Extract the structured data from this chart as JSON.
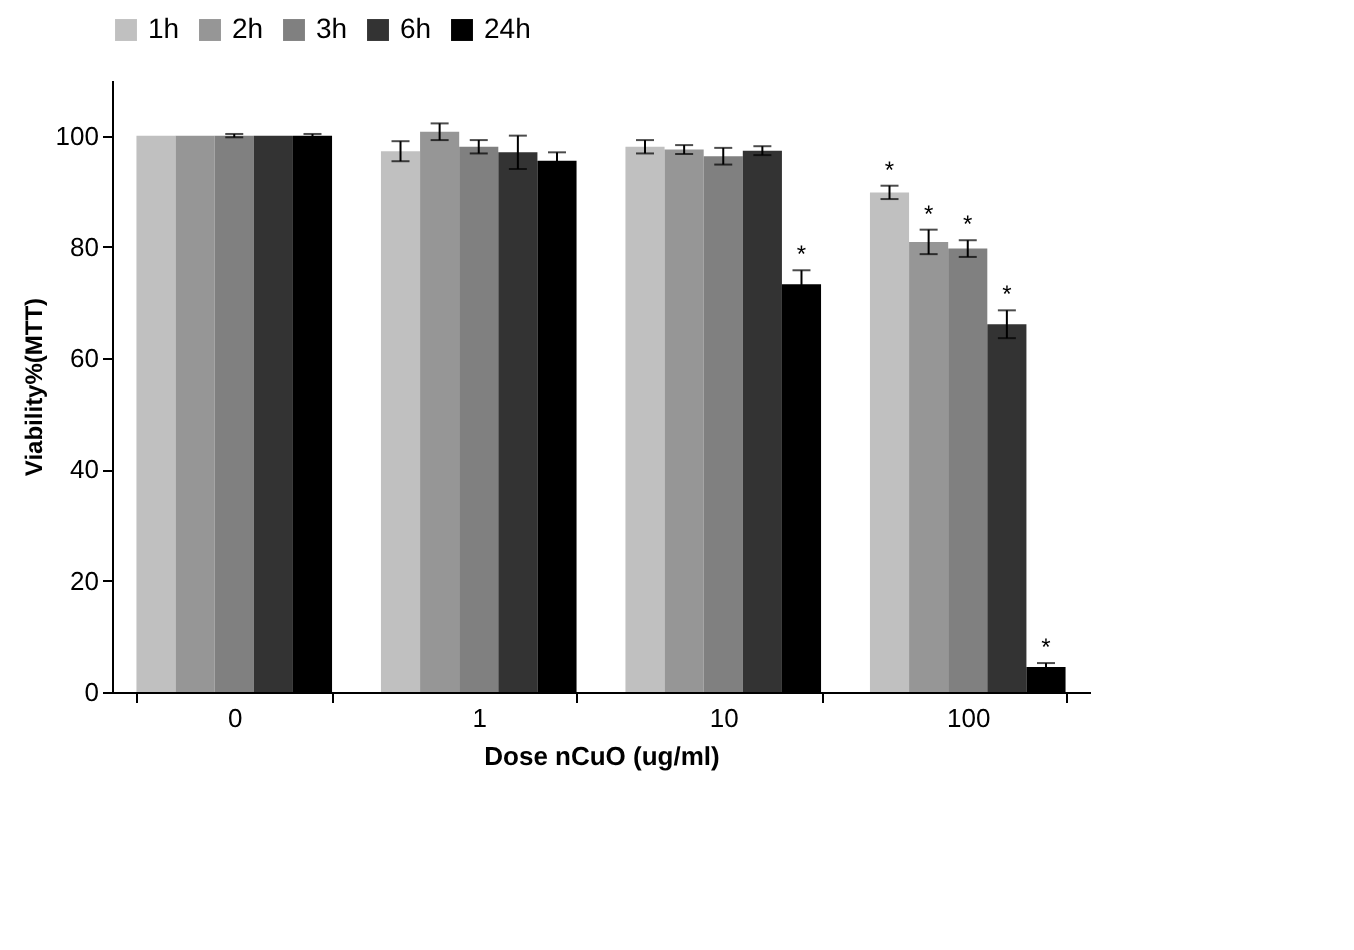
{
  "chart_data": {
    "type": "bar",
    "xlabel": "Dose nCuO (ug/ml)",
    "ylabel": "Viability%(MTT)",
    "categories": [
      "0",
      "1",
      "10",
      "100"
    ],
    "series": [
      {
        "name": "1h",
        "color": "#c0c0c0",
        "values": [
          100,
          97.2,
          98,
          89.8
        ],
        "errors": [
          null,
          1.8,
          1.2,
          1.2
        ],
        "value_labels": [
          null,
          null,
          null,
          "*"
        ]
      },
      {
        "name": "2h",
        "color": "#969696",
        "values": [
          100,
          100.7,
          97.5,
          80.9
        ],
        "errors": [
          null,
          1.5,
          0.8,
          2.2
        ],
        "value_labels": [
          null,
          null,
          null,
          "*"
        ]
      },
      {
        "name": "3h",
        "color": "#808080",
        "values": [
          100,
          98,
          96.3,
          79.7
        ],
        "errors": [
          0.3,
          1.2,
          1.5,
          1.5
        ],
        "value_labels": [
          null,
          null,
          null,
          "*"
        ]
      },
      {
        "name": "6h",
        "color": "#333333",
        "values": [
          100,
          97,
          97.3,
          66.1
        ],
        "errors": [
          null,
          3,
          0.8,
          2.5
        ],
        "value_labels": [
          null,
          null,
          null,
          "*"
        ]
      },
      {
        "name": "24h",
        "color": "#000000",
        "values": [
          100,
          95.5,
          73.3,
          4.5
        ],
        "errors": [
          0.3,
          1.5,
          2.5,
          0.7
        ],
        "value_labels": [
          null,
          null,
          "*",
          "*"
        ]
      }
    ],
    "ylim": [
      0,
      110
    ],
    "yticks": [
      0,
      20,
      40,
      60,
      80,
      100
    ],
    "grid": false,
    "legend": "top"
  }
}
